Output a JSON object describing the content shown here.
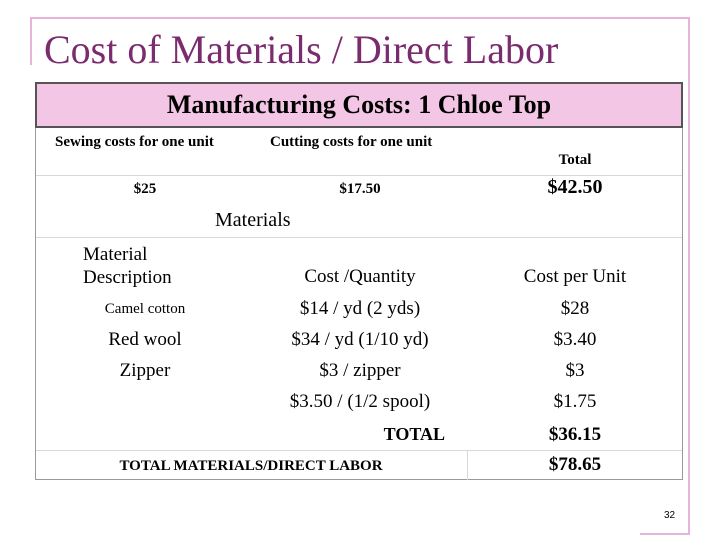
{
  "title": "Cost of Materials / Direct Labor",
  "table": {
    "caption": "Manufacturing Costs: 1 Chloe Top",
    "summary": {
      "headers": [
        "Sewing costs for one unit",
        "Cutting costs for one unit",
        "Total"
      ],
      "values": [
        "$25",
        "$17.50",
        "$42.50"
      ]
    },
    "section": "Materials",
    "headers": [
      "Material Description",
      "Cost /Quantity",
      "Cost per Unit"
    ],
    "rows": [
      {
        "description": "Camel cotton",
        "cost_quantity": "$14 / yd (2 yds)",
        "cost_per_unit": "$28"
      },
      {
        "description": "Red wool",
        "cost_quantity": "$34 / yd (1/10 yd)",
        "cost_per_unit": "$3.40"
      },
      {
        "description": "Zipper",
        "cost_quantity": "$3 / zipper",
        "cost_per_unit": "$3"
      },
      {
        "cost_quantity": "$3.50 / (1/2 spool)",
        "cost_per_unit": "$1.75"
      }
    ],
    "total": {
      "label": "TOTAL",
      "value": "$36.15"
    },
    "grand_total": {
      "label": "TOTAL MATERIALS/DIRECT LABOR",
      "value": "$78.65"
    }
  },
  "page_number": "32"
}
